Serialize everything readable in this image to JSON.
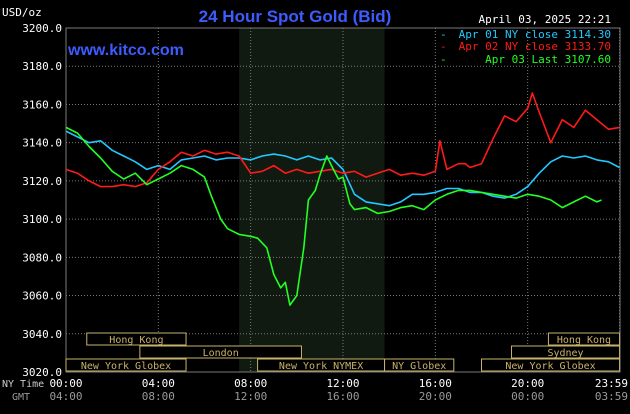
{
  "colors": {
    "background": "#000000",
    "grid": "#7a7a7a",
    "axis_text": "#ffffff",
    "title": "#3d5cff",
    "site": "#3d5cff",
    "session_box": "#c8b26a",
    "night_shade": "#101a10",
    "series_apr01": "#22c8ff",
    "series_apr02": "#ff1a1a",
    "series_apr03": "#22ff22",
    "tz_label": "#cccccc",
    "gmt_label": "#9a9a9a"
  },
  "chart_data": {
    "type": "line",
    "title": "24 Hour Spot Gold (Bid)",
    "site": "www.kitco.com",
    "date_label": "April 03, 2025 22:21",
    "ylabel": "USD/oz",
    "ylim": [
      3020,
      3200
    ],
    "yticks": [
      "3200.0",
      "3180.0",
      "3160.0",
      "3140.0",
      "3120.0",
      "3100.0",
      "3080.0",
      "3060.0",
      "3040.0",
      "3020.0"
    ],
    "yticks_values": [
      3200,
      3180,
      3160,
      3140,
      3120,
      3100,
      3080,
      3060,
      3040,
      3020
    ],
    "xlim": [
      0,
      24
    ],
    "x_row1_label": "NY Time",
    "x_row2_label": "GMT",
    "xticks_ny": [
      "00:00",
      "04:00",
      "08:00",
      "12:00",
      "16:00",
      "20:00",
      "23:59"
    ],
    "xticks_gmt": [
      "04:00",
      "08:00",
      "12:00",
      "16:00",
      "20:00",
      "00:00",
      "03:59"
    ],
    "xticks_values": [
      0,
      4,
      8,
      12,
      16,
      20,
      23.98
    ],
    "grid": true,
    "legend_position": "top-right",
    "shaded_region_hours": [
      7.5,
      13.8
    ],
    "sessions": [
      {
        "label": "Hong Kong",
        "start": 0.9,
        "end": 5.2,
        "row": 1
      },
      {
        "label": "London",
        "start": 3.2,
        "end": 10.2,
        "row": 2
      },
      {
        "label": "New York Globex",
        "start": 0,
        "end": 5.2,
        "row": 3
      },
      {
        "label": "New York NYMEX",
        "start": 8.3,
        "end": 13.8,
        "row": 3
      },
      {
        "label": "NY Globex",
        "start": 13.8,
        "end": 16.8,
        "row": 3
      },
      {
        "label": "Hong Kong",
        "start": 20.9,
        "end": 23.98,
        "row": 1
      },
      {
        "label": "Sydney",
        "start": 19.3,
        "end": 23.98,
        "row": 2
      },
      {
        "label": "New York Globex",
        "start": 18.0,
        "end": 23.98,
        "row": 3
      }
    ],
    "series": [
      {
        "name": "Apr 01 NY close 3114.30",
        "color_key": "series_apr01",
        "x": [
          0,
          0.5,
          1,
          1.5,
          2,
          2.5,
          3,
          3.5,
          4,
          4.5,
          5,
          5.5,
          6,
          6.5,
          7,
          7.5,
          8,
          8.5,
          9,
          9.5,
          10,
          10.5,
          11,
          11.5,
          12,
          12.5,
          13,
          13.5,
          14,
          14.5,
          15,
          15.5,
          16,
          16.5,
          17,
          17.5,
          18,
          18.5,
          19,
          19.5,
          20,
          20.5,
          21,
          21.5,
          22,
          22.5,
          23,
          23.5,
          23.98
        ],
        "y": [
          3146,
          3143,
          3140,
          3141,
          3136,
          3133,
          3130,
          3126,
          3128,
          3126,
          3131,
          3132,
          3133,
          3131,
          3132,
          3132,
          3131,
          3133,
          3134,
          3133,
          3131,
          3133,
          3131,
          3132,
          3126,
          3113,
          3109,
          3108,
          3107,
          3109,
          3113,
          3113,
          3114,
          3116,
          3116,
          3114,
          3114,
          3112,
          3111,
          3113,
          3117,
          3124,
          3130,
          3133,
          3132,
          3133,
          3131,
          3130,
          3127
        ]
      },
      {
        "name": "Apr 02 NY close 3133.70",
        "color_key": "series_apr02",
        "x": [
          0,
          0.5,
          1,
          1.5,
          2,
          2.5,
          3,
          3.5,
          4,
          4.5,
          5,
          5.5,
          6,
          6.5,
          7,
          7.5,
          8,
          8.5,
          9,
          9.5,
          10,
          10.5,
          11,
          11.5,
          12,
          12.5,
          13,
          13.5,
          14,
          14.5,
          15,
          15.5,
          16,
          16.2,
          16.5,
          17,
          17.3,
          17.5,
          18,
          18.5,
          19,
          19.5,
          20,
          20.2,
          20.5,
          21,
          21.5,
          22,
          22.5,
          23,
          23.5,
          23.98
        ],
        "y": [
          3126,
          3124,
          3120,
          3117,
          3117,
          3118,
          3117,
          3119,
          3126,
          3130,
          3135,
          3133,
          3136,
          3134,
          3135,
          3133,
          3124,
          3125,
          3128,
          3124,
          3126,
          3124,
          3125,
          3126,
          3124,
          3125,
          3122,
          3124,
          3126,
          3123,
          3124,
          3123,
          3125,
          3141,
          3126,
          3129,
          3129,
          3127,
          3129,
          3142,
          3154,
          3151,
          3158,
          3166,
          3156,
          3140,
          3152,
          3148,
          3157,
          3152,
          3147,
          3148
        ]
      },
      {
        "name": "Apr 03 Last 3107.60",
        "color_key": "series_apr03",
        "x": [
          0,
          0.5,
          1,
          1.5,
          2,
          2.5,
          3,
          3.5,
          4,
          4.5,
          5,
          5.5,
          6,
          6.3,
          6.7,
          7,
          7.5,
          8,
          8.3,
          8.7,
          9,
          9.3,
          9.5,
          9.7,
          10,
          10.3,
          10.5,
          10.8,
          11,
          11.3,
          11.5,
          11.8,
          12,
          12.3,
          12.5,
          13,
          13.5,
          14,
          14.5,
          15,
          15.5,
          16,
          16.5,
          17,
          17.5,
          18,
          18.5,
          19,
          19.5,
          20,
          20.5,
          21,
          21.5,
          22,
          22.5,
          23,
          23.2
        ],
        "y": [
          3148,
          3145,
          3138,
          3132,
          3125,
          3121,
          3124,
          3118,
          3121,
          3124,
          3128,
          3126,
          3122,
          3112,
          3100,
          3095,
          3092,
          3091,
          3090,
          3085,
          3071,
          3064,
          3067,
          3055,
          3060,
          3085,
          3110,
          3115,
          3123,
          3133,
          3128,
          3121,
          3122,
          3108,
          3105,
          3106,
          3103,
          3104,
          3106,
          3107,
          3105,
          3110,
          3113,
          3115,
          3115,
          3114,
          3113,
          3112,
          3111,
          3113,
          3112,
          3110,
          3106,
          3109,
          3112,
          3109,
          3110
        ]
      }
    ]
  }
}
